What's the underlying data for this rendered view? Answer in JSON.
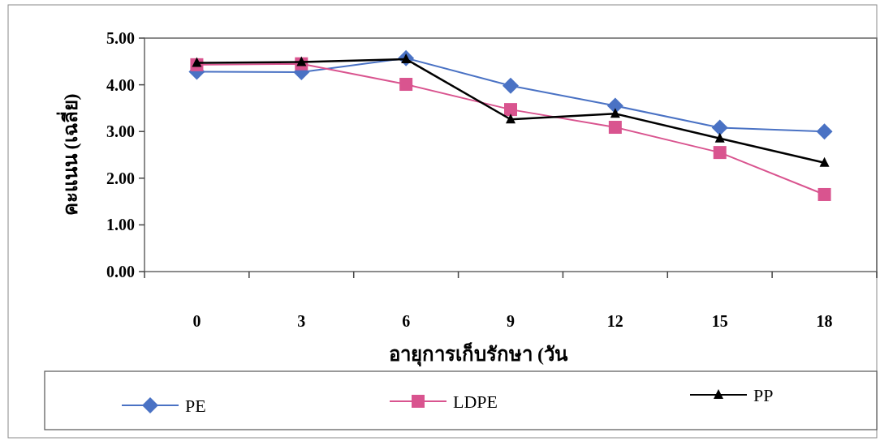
{
  "chart_data": {
    "type": "line",
    "xlabel": "อายุการเก็บรักษา (วัน",
    "ylabel": "คะแนน (เฉลี่ย)",
    "categories": [
      "0",
      "3",
      "6",
      "9",
      "12",
      "15",
      "18"
    ],
    "series": [
      {
        "name": "PE",
        "color": "#4a72c4",
        "marker": "diamond",
        "values": [
          4.28,
          4.27,
          4.57,
          3.98,
          3.55,
          3.08,
          3.0
        ]
      },
      {
        "name": "LDPE",
        "color": "#d9548f",
        "marker": "square",
        "values": [
          4.43,
          4.45,
          4.01,
          3.47,
          3.09,
          2.55,
          1.65
        ]
      },
      {
        "name": "PP",
        "color": "#000000",
        "marker": "triangle",
        "values": [
          4.47,
          4.49,
          4.55,
          3.26,
          3.38,
          2.85,
          2.33
        ]
      }
    ],
    "ylim": [
      0,
      5
    ],
    "yticks": [
      {
        "value": 0,
        "label": "0.00"
      },
      {
        "value": 1,
        "label": "1.00"
      },
      {
        "value": 2,
        "label": "2.00"
      },
      {
        "value": 3,
        "label": "3.00"
      },
      {
        "value": 4,
        "label": "4.00"
      },
      {
        "value": 5,
        "label": "5.00"
      }
    ],
    "grid": false,
    "legend": "bottom",
    "line_style": "solid"
  }
}
